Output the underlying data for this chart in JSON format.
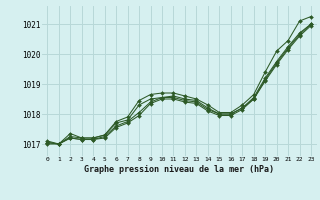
{
  "title": "Graphe pression niveau de la mer (hPa)",
  "background_color": "#d6f0f0",
  "grid_color": "#b8d8d8",
  "line_color": "#2d5a27",
  "xlim": [
    -0.5,
    23.5
  ],
  "ylim": [
    1016.6,
    1021.6
  ],
  "yticks": [
    1017,
    1018,
    1019,
    1020,
    1021
  ],
  "xticks": [
    0,
    1,
    2,
    3,
    4,
    5,
    6,
    7,
    8,
    9,
    10,
    11,
    12,
    13,
    14,
    15,
    16,
    17,
    18,
    19,
    20,
    21,
    22,
    23
  ],
  "series": [
    [
      1017.1,
      1017.0,
      1017.35,
      1017.2,
      1017.2,
      1017.3,
      1017.75,
      1017.9,
      1018.45,
      1018.65,
      1018.7,
      1018.7,
      1018.6,
      1018.5,
      1018.3,
      1018.05,
      1018.05,
      1018.3,
      1018.65,
      1019.4,
      1020.1,
      1020.45,
      1021.1,
      1021.25
    ],
    [
      1017.05,
      1017.0,
      1017.25,
      1017.2,
      1017.2,
      1017.3,
      1017.7,
      1017.8,
      1018.3,
      1018.5,
      1018.55,
      1018.6,
      1018.5,
      1018.45,
      1018.2,
      1018.0,
      1018.0,
      1018.2,
      1018.55,
      1019.2,
      1019.75,
      1020.25,
      1020.7,
      1021.0
    ],
    [
      1017.05,
      1017.0,
      1017.2,
      1017.15,
      1017.15,
      1017.25,
      1017.6,
      1017.75,
      1018.05,
      1018.4,
      1018.55,
      1018.55,
      1018.45,
      1018.4,
      1018.15,
      1018.0,
      1018.0,
      1018.2,
      1018.5,
      1019.15,
      1019.7,
      1020.2,
      1020.65,
      1021.0
    ],
    [
      1017.0,
      1017.0,
      1017.2,
      1017.15,
      1017.15,
      1017.2,
      1017.55,
      1017.7,
      1017.95,
      1018.35,
      1018.5,
      1018.5,
      1018.4,
      1018.35,
      1018.1,
      1017.95,
      1017.95,
      1018.15,
      1018.5,
      1019.1,
      1019.65,
      1020.15,
      1020.6,
      1020.95
    ]
  ]
}
